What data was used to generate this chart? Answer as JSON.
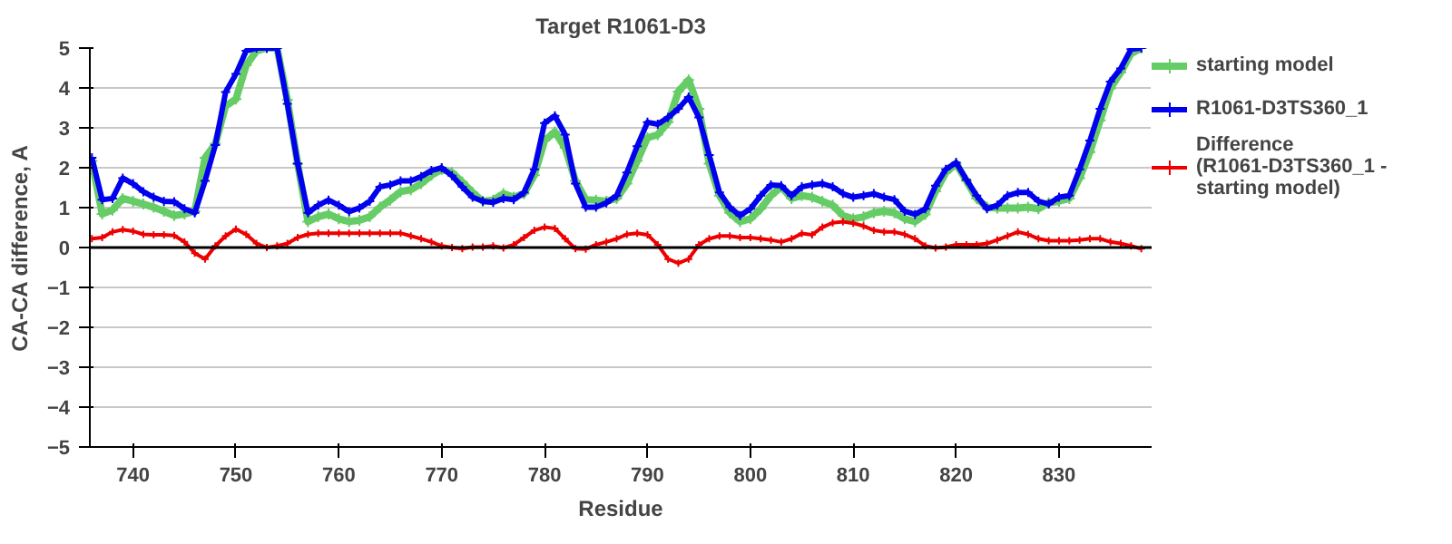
{
  "chart_data": {
    "type": "line",
    "title": "Target R1061-D3",
    "xlabel": "Residue",
    "ylabel": "CA-CA difference, A",
    "x": [
      736,
      737,
      738,
      739,
      740,
      741,
      742,
      743,
      744,
      745,
      746,
      747,
      748,
      749,
      750,
      751,
      752,
      753,
      754,
      755,
      756,
      757,
      758,
      759,
      760,
      761,
      762,
      763,
      764,
      765,
      766,
      767,
      768,
      769,
      770,
      771,
      772,
      773,
      774,
      775,
      776,
      777,
      778,
      779,
      780,
      781,
      782,
      783,
      784,
      785,
      786,
      787,
      788,
      789,
      790,
      791,
      792,
      793,
      794,
      795,
      796,
      797,
      798,
      799,
      800,
      801,
      802,
      803,
      804,
      805,
      806,
      807,
      808,
      809,
      810,
      811,
      812,
      813,
      814,
      815,
      816,
      817,
      818,
      819,
      820,
      821,
      822,
      823,
      824,
      825,
      826,
      827,
      828,
      829,
      830,
      831,
      832,
      833,
      834,
      835,
      836,
      837,
      838
    ],
    "series": [
      {
        "name": "starting model",
        "color": "#66cc66",
        "values": [
          2.17,
          0.84,
          0.94,
          1.23,
          1.16,
          1.09,
          1.01,
          0.91,
          0.8,
          0.84,
          0.91,
          2.25,
          2.6,
          3.55,
          3.72,
          4.57,
          4.93,
          5,
          5,
          3.7,
          2.1,
          0.65,
          0.77,
          0.84,
          0.72,
          0.65,
          0.68,
          0.77,
          1.01,
          1.19,
          1.4,
          1.45,
          1.6,
          1.81,
          1.96,
          1.88,
          1.64,
          1.38,
          1.16,
          1.19,
          1.35,
          1.26,
          1.35,
          1.81,
          2.68,
          2.9,
          2.5,
          1.67,
          1.2,
          1.19,
          1.16,
          1.23,
          1.6,
          2.17,
          2.75,
          2.83,
          3.14,
          3.91,
          4.2,
          3.48,
          2.1,
          1.3,
          0.87,
          0.65,
          0.72,
          0.97,
          1.3,
          1.52,
          1.23,
          1.3,
          1.26,
          1.16,
          1.06,
          0.8,
          0.72,
          0.77,
          0.87,
          0.91,
          0.87,
          0.72,
          0.65,
          0.83,
          1.41,
          1.88,
          2.1,
          1.67,
          1.23,
          1.01,
          0.99,
          0.99,
          0.99,
          1.01,
          0.97,
          1.12,
          1.16,
          1.23,
          1.74,
          2.39,
          3.19,
          3.99,
          4.39,
          4.86,
          5
        ]
      },
      {
        "name": "R1061-D3TS360_1",
        "color": "#0000ee",
        "values": [
          2.25,
          1.2,
          1.23,
          1.74,
          1.6,
          1.4,
          1.26,
          1.16,
          1.15,
          0.97,
          0.87,
          1.67,
          2.57,
          3.9,
          4.35,
          4.93,
          5,
          5,
          5,
          3.6,
          2.1,
          0.87,
          1.06,
          1.19,
          1.06,
          0.9,
          0.99,
          1.16,
          1.52,
          1.57,
          1.67,
          1.67,
          1.78,
          1.93,
          2.0,
          1.8,
          1.52,
          1.26,
          1.16,
          1.13,
          1.23,
          1.2,
          1.38,
          1.96,
          3.12,
          3.3,
          2.83,
          1.6,
          1.01,
          1.01,
          1.12,
          1.3,
          1.88,
          2.54,
          3.14,
          3.09,
          3.26,
          3.48,
          3.77,
          3.26,
          2.32,
          1.38,
          1.01,
          0.8,
          0.97,
          1.3,
          1.57,
          1.55,
          1.3,
          1.52,
          1.57,
          1.6,
          1.52,
          1.35,
          1.26,
          1.3,
          1.35,
          1.26,
          1.2,
          0.91,
          0.83,
          0.97,
          1.55,
          1.96,
          2.13,
          1.7,
          1.3,
          0.97,
          1.06,
          1.3,
          1.38,
          1.38,
          1.16,
          1.09,
          1.26,
          1.3,
          1.96,
          2.68,
          3.48,
          4.16,
          4.49,
          4.97,
          5
        ]
      },
      {
        "name": "Difference\n(R1061-D3TS360_1 -\nstarting model)",
        "color": "#ee0000",
        "values": [
          0.22,
          0.25,
          0.39,
          0.45,
          0.41,
          0.33,
          0.32,
          0.32,
          0.3,
          0.14,
          -0.14,
          -0.29,
          0.04,
          0.29,
          0.46,
          0.33,
          0.1,
          0,
          0.04,
          0.1,
          0.25,
          0.33,
          0.36,
          0.36,
          0.36,
          0.36,
          0.36,
          0.36,
          0.36,
          0.36,
          0.36,
          0.29,
          0.22,
          0.14,
          0.04,
          0,
          -0.03,
          0.01,
          0.01,
          0.04,
          -0.01,
          0.07,
          0.25,
          0.43,
          0.51,
          0.48,
          0.22,
          -0.03,
          -0.04,
          0.07,
          0.14,
          0.22,
          0.33,
          0.36,
          0.32,
          0.07,
          -0.29,
          -0.39,
          -0.29,
          0.07,
          0.22,
          0.29,
          0.29,
          0.25,
          0.25,
          0.22,
          0.19,
          0.14,
          0.22,
          0.35,
          0.32,
          0.51,
          0.62,
          0.65,
          0.61,
          0.54,
          0.43,
          0.39,
          0.39,
          0.33,
          0.22,
          0.04,
          -0.01,
          0.01,
          0.07,
          0.07,
          0.07,
          0.1,
          0.19,
          0.29,
          0.39,
          0.33,
          0.22,
          0.17,
          0.17,
          0.17,
          0.19,
          0.22,
          0.22,
          0.14,
          0.1,
          0.04,
          -0.03
        ]
      }
    ],
    "xlim": [
      735.8,
      839
    ],
    "xticks": [
      740,
      750,
      760,
      770,
      780,
      790,
      800,
      810,
      820,
      830
    ],
    "ylim": [
      -5,
      5
    ],
    "yticks": [
      -5,
      -4,
      -3,
      -2,
      -1,
      0,
      1,
      2,
      3,
      4,
      5
    ],
    "ref_lines": [
      {
        "axis": "y",
        "value": 0,
        "color": "#000000"
      }
    ],
    "grid": "y",
    "legend": "right",
    "marker": "cross",
    "line_style": "solid"
  }
}
